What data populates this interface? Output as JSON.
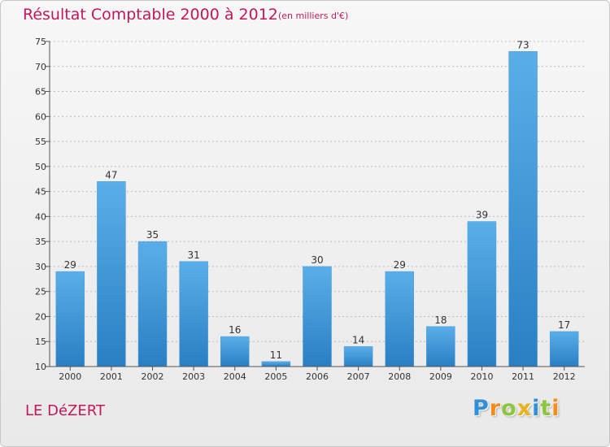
{
  "chart_data": {
    "type": "bar",
    "title": "Résultat Comptable 2000 à 2012",
    "subtitle": "(en milliers d'€)",
    "categories": [
      "2000",
      "2001",
      "2002",
      "2003",
      "2004",
      "2005",
      "2006",
      "2007",
      "2008",
      "2009",
      "2010",
      "2011",
      "2012"
    ],
    "values": [
      29,
      47,
      35,
      31,
      16,
      11,
      30,
      14,
      29,
      18,
      39,
      73,
      17
    ],
    "ylim": [
      10,
      75
    ],
    "yticks": [
      10,
      15,
      20,
      25,
      30,
      35,
      40,
      45,
      50,
      55,
      60,
      65,
      70,
      75
    ],
    "grid": true,
    "bar_color_top": "#5aaee8",
    "bar_color_bottom": "#2a7fc4"
  },
  "footer": {
    "commune": "LE DéZERT",
    "logo_letters": [
      {
        "ch": "P",
        "color": "#2f8fd8"
      },
      {
        "ch": "r",
        "color": "#f28c1a"
      },
      {
        "ch": "o",
        "color": "#8cc63f"
      },
      {
        "ch": "x",
        "color": "#e8b21a"
      },
      {
        "ch": "i",
        "color": "#2f8fd8"
      },
      {
        "ch": "t",
        "color": "#8cc63f"
      },
      {
        "ch": "i",
        "color": "#f28c1a"
      }
    ]
  },
  "colors": {
    "accent": "#c2185b",
    "axis": "#555555",
    "grid": "#bdbdbd"
  }
}
